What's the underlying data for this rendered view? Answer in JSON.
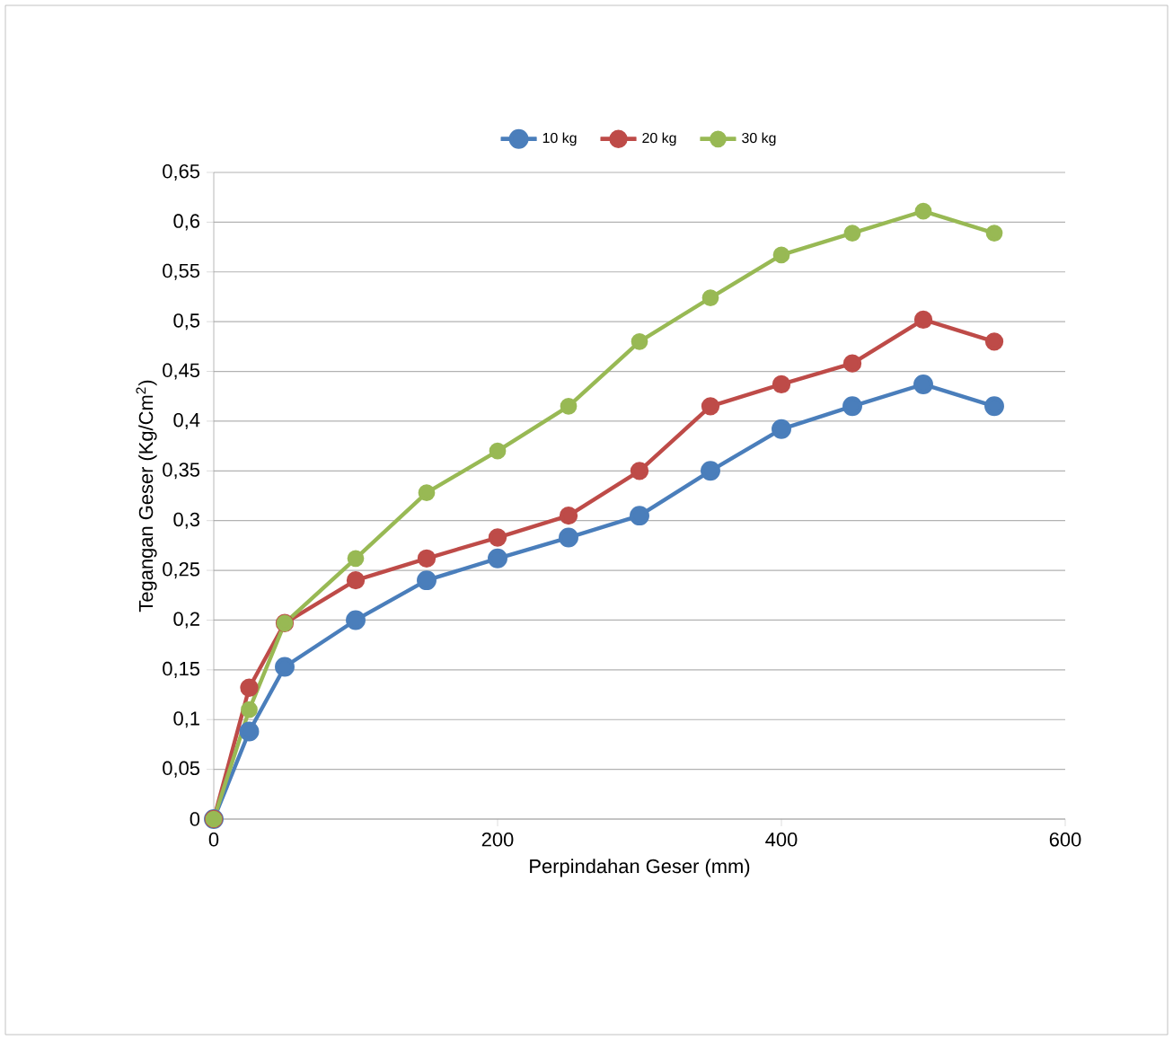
{
  "chart_data": {
    "type": "line",
    "xlabel": "Perpindahan Geser (mm)",
    "ylabel": "Tegangan Geser  (Kg/Cm$^{2}$)",
    "x": [
      0,
      25,
      50,
      100,
      150,
      200,
      250,
      300,
      350,
      400,
      450,
      500,
      550
    ],
    "series": [
      {
        "name": "10 kg",
        "color": "#4a7ebb",
        "values": [
          0,
          0.088,
          0.153,
          0.2,
          0.24,
          0.262,
          0.283,
          0.305,
          0.35,
          0.392,
          0.415,
          0.437,
          0.415
        ]
      },
      {
        "name": "20 kg",
        "color": "#be4b48",
        "values": [
          0,
          0.132,
          0.197,
          0.24,
          0.262,
          0.283,
          0.305,
          0.35,
          0.415,
          0.437,
          0.458,
          0.502,
          0.48
        ]
      },
      {
        "name": "30 kg",
        "color": "#98b954",
        "values": [
          0,
          0.11,
          0.197,
          0.262,
          0.328,
          0.37,
          0.415,
          0.48,
          0.524,
          0.567,
          0.589,
          0.611,
          0.589
        ]
      }
    ],
    "xlim": [
      0,
      600
    ],
    "xticks": [
      0,
      200,
      400,
      600
    ],
    "ylim": [
      0,
      0.65
    ],
    "yticks": [
      0,
      {
        "value": 0.05,
        "label": "0,05"
      },
      {
        "value": 0.1,
        "label": "0,1"
      },
      {
        "value": 0.15,
        "label": "0,15"
      },
      {
        "value": 0.2,
        "label": "0,2"
      },
      {
        "value": 0.25,
        "label": "0,25"
      },
      {
        "value": 0.3,
        "label": "0,3"
      },
      {
        "value": 0.35,
        "label": "0,35"
      },
      {
        "value": 0.4,
        "label": "0,4"
      },
      {
        "value": 0.45,
        "label": "0,45"
      },
      {
        "value": 0.5,
        "label": "0,5"
      },
      {
        "value": 0.55,
        "label": "0,55"
      },
      {
        "value": 0.6,
        "label": "0,6"
      },
      {
        "value": 0.65,
        "label": "0,65"
      }
    ],
    "grid": "y",
    "legend": "top",
    "marker": "circle",
    "line_style": "solid"
  }
}
